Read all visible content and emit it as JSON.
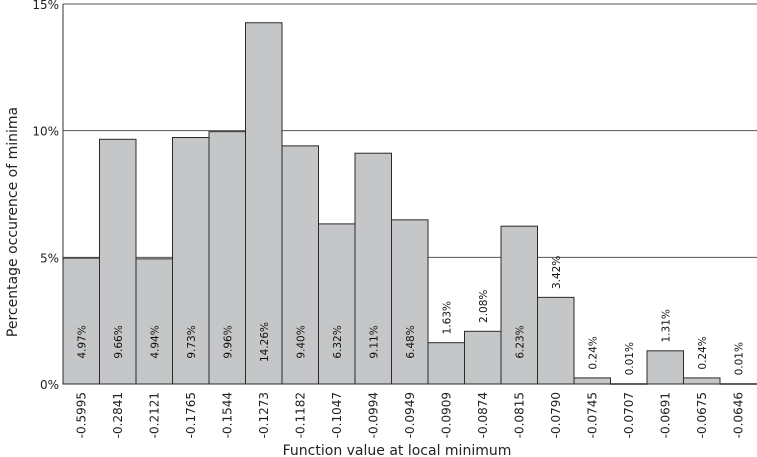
{
  "chart_data": {
    "type": "bar",
    "xlabel": "Function value at local minimum",
    "ylabel": "Percentage occurence of minima",
    "categories": [
      "-0.5995",
      "-0.2841",
      "-0.2121",
      "-0.1765",
      "-0.1544",
      "-0.1273",
      "-0.1182",
      "-0.1047",
      "-0.0994",
      "-0.0949",
      "-0.0909",
      "-0.0874",
      "-0.0815",
      "-0.0790",
      "-0.0745",
      "-0.0707",
      "-0.0691",
      "-0.0675",
      "-0.0646"
    ],
    "values": [
      4.97,
      9.66,
      4.94,
      9.73,
      9.96,
      14.26,
      9.4,
      6.32,
      9.11,
      6.48,
      1.63,
      2.08,
      6.23,
      3.42,
      0.24,
      0.01,
      1.31,
      0.24,
      0.01
    ],
    "data_labels": [
      "4.97%",
      "9.66%",
      "4.94%",
      "9.73%",
      "9.96%",
      "14.26%",
      "9.40%",
      "6.32%",
      "9.11%",
      "6.48%",
      "1.63%",
      "2.08%",
      "6.23%",
      "3.42%",
      "0.24%",
      "0.01%",
      "1.31%",
      "0.24%",
      "0.01%"
    ],
    "yticks": [
      0,
      5,
      10,
      15
    ],
    "ytick_labels": [
      "0%",
      "5%",
      "10%",
      "15%"
    ],
    "ylim": [
      0,
      15
    ],
    "grid": "horizontal",
    "bar_color": "#c4c6c8",
    "bar_edge_color": "#2a2a2a"
  }
}
